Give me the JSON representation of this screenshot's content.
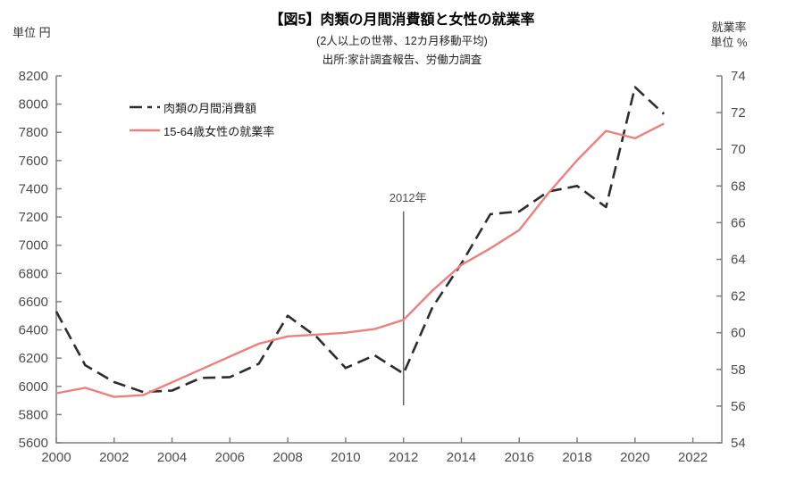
{
  "header": {
    "title": "【図5】肉類の月間消費額と女性の就業率",
    "subtitle": "(2人以上の世帯、12カ月移動平均)",
    "source": "出所:家計調査報告、労働力調査",
    "left_axis_unit": "単位 円",
    "right_axis_title": "就業率",
    "right_axis_unit": "単位 %"
  },
  "legend": {
    "items": [
      {
        "label": "肉類の月間消費額",
        "style": "dashed",
        "color": "#2d2d2d"
      },
      {
        "label": "15-64歳女性の就業率",
        "style": "solid",
        "color": "#ef7f7f"
      }
    ]
  },
  "annotation": {
    "label": "2012年",
    "x": 2012,
    "y_top_yen": 7240,
    "y_bottom_yen": 5865,
    "line_color": "#666666"
  },
  "chart_data": {
    "type": "line",
    "title": "【図5】肉類の月間消費額と女性の就業率",
    "subtitle": "(2人以上の世帯、12カ月移動平均)",
    "source": "出所:家計調査報告、労働力調査",
    "grid": false,
    "legend_position": "top-left",
    "x": [
      2000,
      2001,
      2002,
      2003,
      2004,
      2005,
      2006,
      2007,
      2008,
      2009,
      2010,
      2011,
      2012,
      2013,
      2014,
      2015,
      2016,
      2017,
      2018,
      2019,
      2020,
      2021
    ],
    "series": [
      {
        "name": "肉類の月間消費額",
        "axis": "left",
        "unit": "円",
        "color": "#2d2d2d",
        "style": "dashed",
        "values": [
          6530,
          6150,
          6030,
          5960,
          5970,
          6060,
          6065,
          6160,
          6500,
          6350,
          6130,
          6220,
          6090,
          6560,
          6870,
          7220,
          7240,
          7380,
          7420,
          7270,
          8120,
          7930
        ]
      },
      {
        "name": "15-64歳女性の就業率",
        "axis": "right",
        "unit": "%",
        "color": "#ef7f7f",
        "style": "solid",
        "values": [
          56.7,
          57.0,
          56.5,
          56.6,
          57.3,
          58.0,
          58.7,
          59.4,
          59.8,
          59.9,
          60.0,
          60.2,
          60.7,
          62.3,
          63.7,
          64.6,
          65.6,
          67.6,
          69.4,
          71.0,
          70.6,
          71.4
        ]
      }
    ],
    "left_axis": {
      "label": "単位 円",
      "min": 5600,
      "max": 8200,
      "tick_step": 200,
      "tick_labels": [
        "5600",
        "5800",
        "6000",
        "6200",
        "6400",
        "6600",
        "6800",
        "7000",
        "7200",
        "7400",
        "7600",
        "7800",
        "8000",
        "8200"
      ]
    },
    "right_axis": {
      "label": "就業率 単位 %",
      "min": 54,
      "max": 74,
      "tick_step": 2,
      "tick_labels": [
        "54",
        "56",
        "58",
        "60",
        "62",
        "64",
        "66",
        "68",
        "70",
        "72",
        "74"
      ]
    },
    "x_axis": {
      "min": 2000,
      "max": 2023,
      "tick_step": 2,
      "tick_labels": [
        "2000",
        "2002",
        "2004",
        "2006",
        "2008",
        "2010",
        "2012",
        "2014",
        "2016",
        "2018",
        "2020",
        "2022"
      ]
    },
    "axis_color": "#808080"
  }
}
